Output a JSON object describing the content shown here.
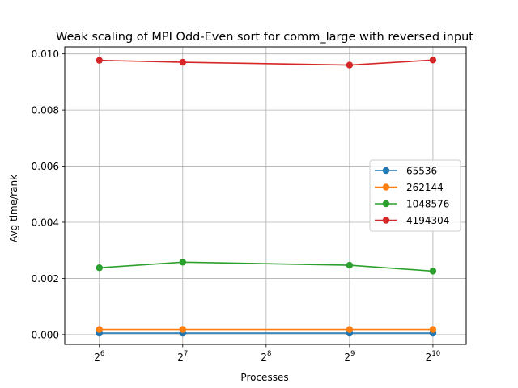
{
  "chart_data": {
    "type": "line",
    "title": "Weak scaling of MPI Odd-Even sort for comm_large with reversed input",
    "xlabel": "Processes",
    "ylabel": "Avg time/rank",
    "x_scale": "log2",
    "x": [
      64,
      128,
      512,
      1024
    ],
    "xlim": [
      48,
      1350
    ],
    "ylim": [
      -0.00035,
      0.01025
    ],
    "x_ticks": [
      {
        "value": 64,
        "base": "2",
        "exp": "6"
      },
      {
        "value": 128,
        "base": "2",
        "exp": "7"
      },
      {
        "value": 256,
        "base": "2",
        "exp": "8"
      },
      {
        "value": 512,
        "base": "2",
        "exp": "9"
      },
      {
        "value": 1024,
        "base": "2",
        "exp": "10"
      }
    ],
    "y_ticks": [
      {
        "value": 0.0,
        "label": "0.000"
      },
      {
        "value": 0.002,
        "label": "0.002"
      },
      {
        "value": 0.004,
        "label": "0.004"
      },
      {
        "value": 0.006,
        "label": "0.006"
      },
      {
        "value": 0.008,
        "label": "0.008"
      },
      {
        "value": 0.01,
        "label": "0.010"
      }
    ],
    "grid": true,
    "legend_position": "center-right",
    "series": [
      {
        "name": "65536",
        "color": "#1f77b4",
        "values": [
          5e-05,
          5e-05,
          5e-05,
          5e-05
        ]
      },
      {
        "name": "262144",
        "color": "#ff7f0e",
        "values": [
          0.00018,
          0.00018,
          0.00018,
          0.00018
        ]
      },
      {
        "name": "1048576",
        "color": "#2ca02c",
        "values": [
          0.00238,
          0.00258,
          0.00247,
          0.00226
        ]
      },
      {
        "name": "4194304",
        "color": "#d62728",
        "values": [
          0.00977,
          0.0097,
          0.0096,
          0.00978
        ]
      }
    ]
  }
}
